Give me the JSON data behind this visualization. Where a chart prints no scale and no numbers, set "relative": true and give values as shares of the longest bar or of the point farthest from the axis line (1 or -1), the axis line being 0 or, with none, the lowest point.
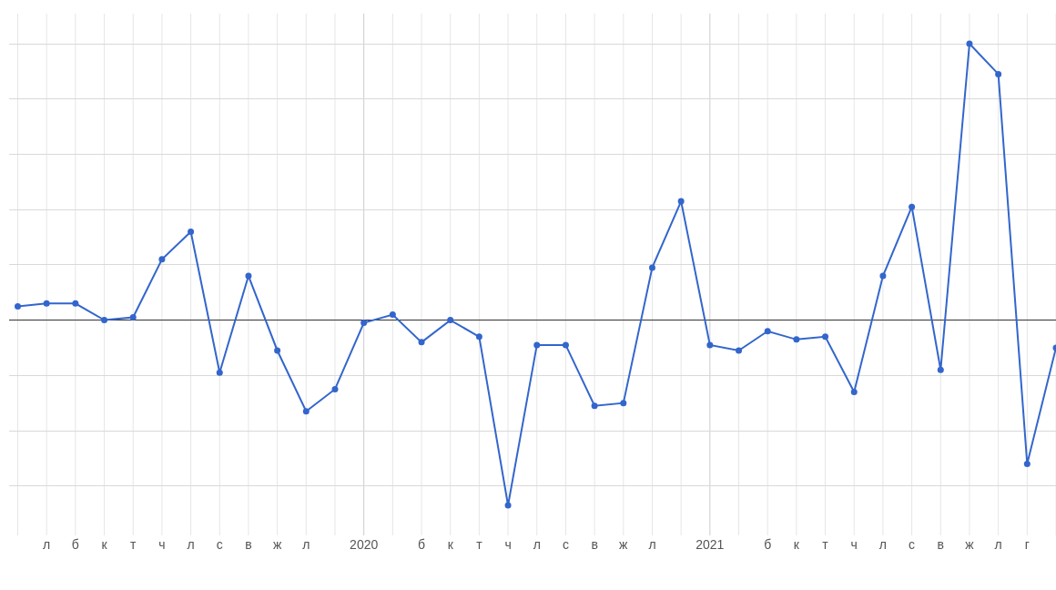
{
  "chart_data": {
    "type": "line",
    "relative": true,
    "categories": [
      null,
      "л",
      "б",
      "к",
      "т",
      "ч",
      "л",
      "с",
      "в",
      "ж",
      "л",
      null,
      "2020",
      null,
      "б",
      "к",
      "т",
      "ч",
      "л",
      "с",
      "в",
      "ж",
      "л",
      null,
      "2021",
      null,
      "б",
      "к",
      "т",
      "ч",
      "л",
      "с",
      "в",
      "ж",
      "л",
      "г",
      null
    ],
    "series": [
      {
        "color": "#3366cc",
        "values": [
          0.05,
          0.06,
          0.06,
          0.0,
          0.01,
          0.22,
          0.32,
          -0.19,
          0.16,
          -0.11,
          -0.33,
          -0.25,
          -0.01,
          0.02,
          -0.08,
          0.0,
          -0.06,
          -0.67,
          -0.09,
          -0.09,
          -0.31,
          -0.3,
          0.19,
          0.43,
          -0.09,
          -0.11,
          -0.04,
          -0.07,
          -0.06,
          -0.26,
          0.16,
          0.41,
          -0.18,
          1,
          0.89,
          -0.52,
          -0.1
        ]
      }
    ],
    "grid": true,
    "legend": false,
    "marker": "circle",
    "line_style": "solid"
  }
}
